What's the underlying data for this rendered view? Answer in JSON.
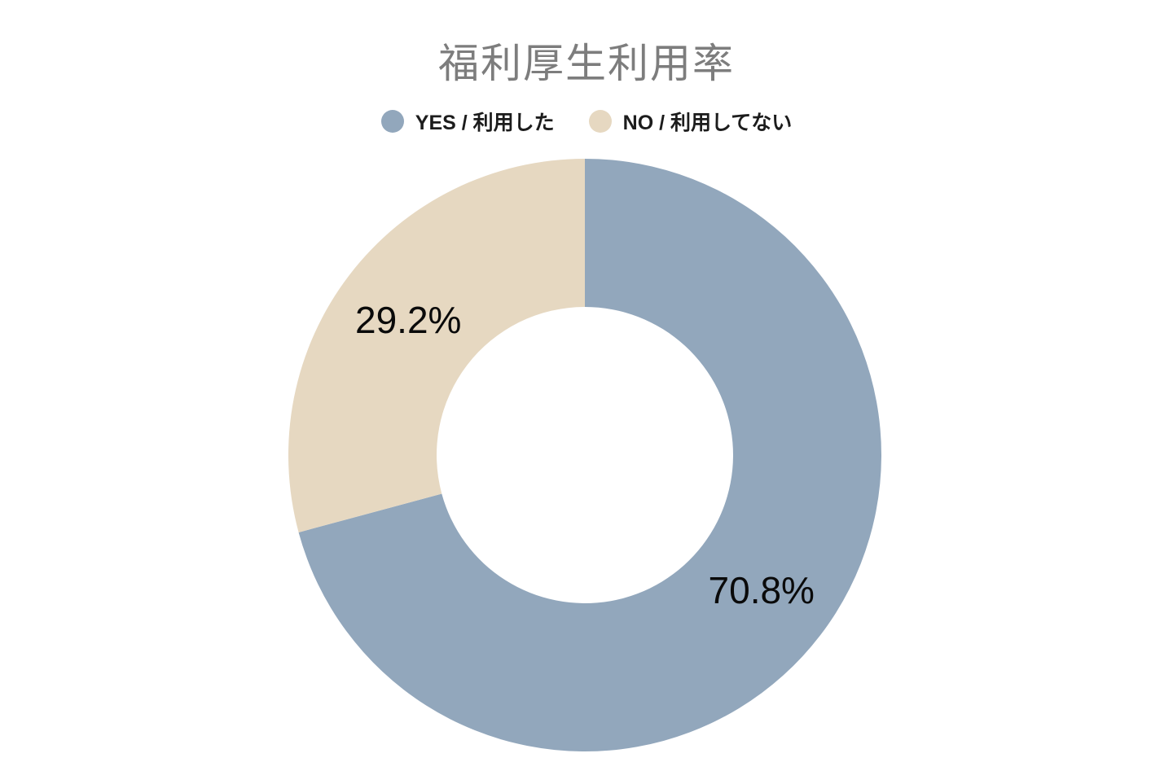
{
  "chart_data": {
    "type": "pie",
    "variant": "donut",
    "title": "福利厚生利用率",
    "slices": [
      {
        "label": "YES / 利用した",
        "value": 70.8,
        "value_label": "70.8%",
        "color": "#92a7bc"
      },
      {
        "label": "NO / 利用してない",
        "value": 29.2,
        "value_label": "29.2%",
        "color": "#e6d8c1"
      }
    ],
    "total": 100,
    "start_angle_deg": 0,
    "direction": "clockwise",
    "donut_hole_ratio": 0.5,
    "legend_position": "top",
    "value_label_format": "percent"
  }
}
